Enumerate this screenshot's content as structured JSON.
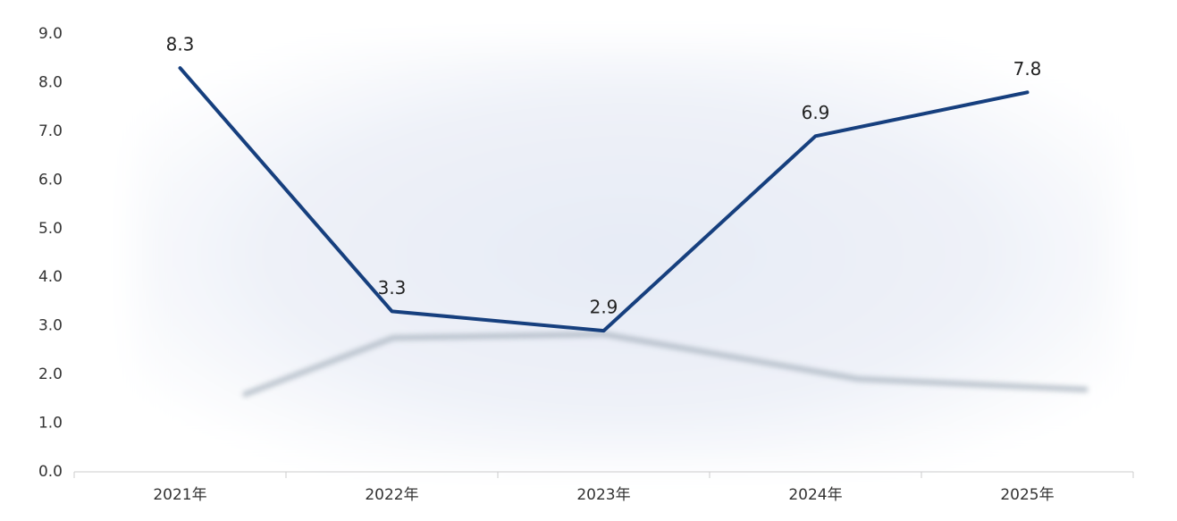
{
  "chart_data": {
    "type": "line",
    "categories": [
      "2021年",
      "2022年",
      "2023年",
      "2024年",
      "2025年"
    ],
    "series": [
      {
        "color": "#163f7e",
        "values": [
          8.3,
          3.3,
          2.9,
          6.9,
          7.8
        ]
      }
    ],
    "ylim": [
      0,
      9
    ],
    "yticks": [
      {
        "value": 0,
        "label": "0.0"
      },
      {
        "value": 1,
        "label": "1.0"
      },
      {
        "value": 2,
        "label": "2.0"
      },
      {
        "value": 3,
        "label": "3.0"
      },
      {
        "value": 4,
        "label": "4.0"
      },
      {
        "value": 5,
        "label": "5.0"
      },
      {
        "value": 6,
        "label": "6.0"
      },
      {
        "value": 7,
        "label": "7.0"
      },
      {
        "value": 8,
        "label": "8.0"
      },
      {
        "value": 9,
        "label": "9.0"
      }
    ],
    "grid": false
  }
}
